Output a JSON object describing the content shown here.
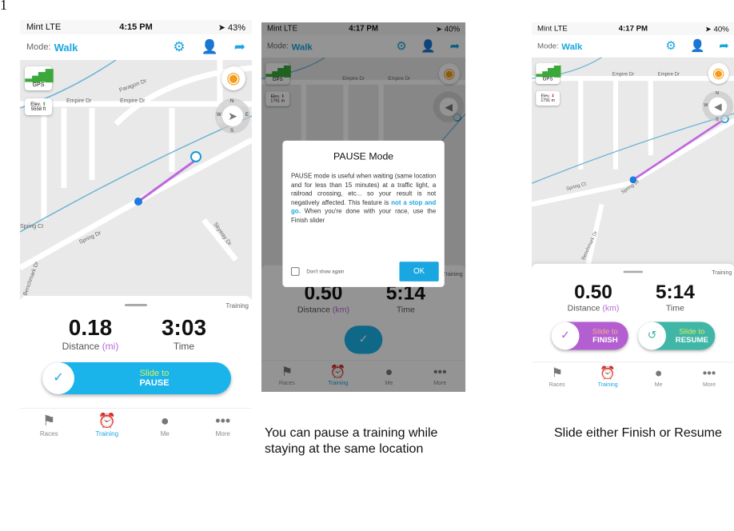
{
  "page_number": "1",
  "screens": [
    {
      "status": {
        "carrier": "Mint  LTE",
        "time": "4:15 PM",
        "battery": "➤ 43%"
      },
      "mode_label": "Mode:",
      "mode": "Walk",
      "gps": "GPS",
      "elev_label": "Elev.",
      "elev_value": "5558 ft",
      "elev_trend": "up",
      "streets": [
        "Paragon Dr",
        "Empire Dr",
        "Empire Dr",
        "Spring Dr",
        "Spring Ct",
        "Skyway Dr",
        "Benchmark Dr",
        "Spring Dr"
      ],
      "compass": {
        "n": "N",
        "s": "S",
        "e": "E",
        "w": "W"
      },
      "panel_label": "Training",
      "distance": "0.18",
      "distance_label": "Distance",
      "distance_unit": "(mi)",
      "time": "3:03",
      "time_label": "Time",
      "slider": {
        "prefix": "Slide to",
        "action": "PAUSE"
      }
    },
    {
      "status": {
        "carrier": "Mint  LTE",
        "time": "4:17 PM",
        "battery": "➤ 40%"
      },
      "mode_label": "Mode:",
      "mode": "Walk",
      "gps": "GPS",
      "elev_label": "Elev.",
      "elev_value": "1791 m",
      "elev_trend": "down",
      "streets": [
        "Empire Dr",
        "Empire Dr"
      ],
      "compass": {
        "n": "N",
        "s": "S",
        "e": "E",
        "w": "W"
      },
      "panel_label": "Training",
      "distance": "0.50",
      "distance_label": "Distance",
      "distance_unit": "(km)",
      "time": "5:14",
      "time_label": "Time",
      "dialog": {
        "title": "PAUSE Mode",
        "body_1": "PAUSE mode is useful when waiting (same location and for less than 15 minutes) at a traffic light, a railroad crossing, etc... so your result is not negatively affected. This feature is ",
        "emphasis": "not a stop and go.",
        "body_2": " When you're done with your race, use the Finish slider",
        "checkbox_label": "Don't show again",
        "ok": "OK"
      }
    },
    {
      "status": {
        "carrier": "Mint  LTE",
        "time": "4:17 PM",
        "battery": "➤ 40%"
      },
      "mode_label": "Mode:",
      "mode": "Walk",
      "gps": "GPS",
      "elev_label": "Elev.",
      "elev_value": "1791 m",
      "elev_trend": "down",
      "streets": [
        "Empire Dr",
        "Empire Dr",
        "Spring Ct",
        "Spring Dr",
        "Benchmark Dr"
      ],
      "compass": {
        "n": "N",
        "s": "S",
        "e": "E",
        "w": "W"
      },
      "panel_label": "Training",
      "distance": "0.50",
      "distance_label": "Distance",
      "distance_unit": "(km)",
      "time": "5:14",
      "time_label": "Time",
      "finish": {
        "prefix": "Slide to",
        "action": "FINISH"
      },
      "resume": {
        "prefix": "Slide to",
        "action": "RESUME"
      }
    }
  ],
  "tabs": [
    {
      "label": "Races",
      "icon": "flag-icon"
    },
    {
      "label": "Training",
      "icon": "alarm-clock-icon",
      "active": true
    },
    {
      "label": "Me",
      "icon": "user-icon"
    },
    {
      "label": "More",
      "icon": "more-icon"
    }
  ],
  "captions": {
    "middle": "You can pause a training while staying at the same location",
    "right": "Slide either Finish or Resume"
  },
  "colors": {
    "accent": "#1aa6e0",
    "finish": "#b35fd1",
    "resume": "#3fb6a6",
    "route": "#b46bd6",
    "gps": "#3aa83a"
  }
}
